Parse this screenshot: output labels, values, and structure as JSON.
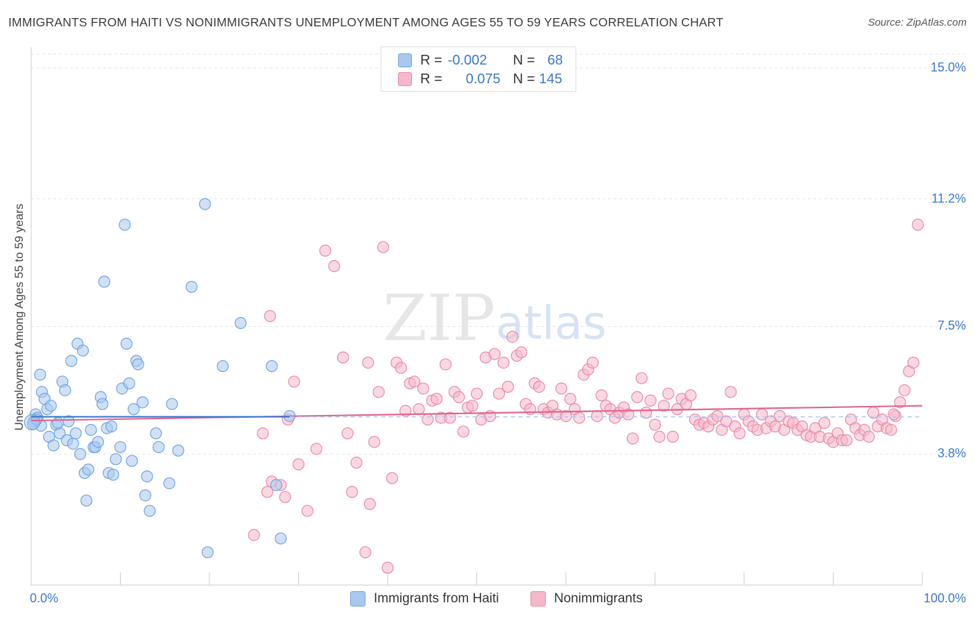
{
  "title": "IMMIGRANTS FROM HAITI VS NONIMMIGRANTS UNEMPLOYMENT AMONG AGES 55 TO 59 YEARS CORRELATION CHART",
  "source": "Source: ZipAtlas.com",
  "watermark": {
    "zip": "ZIP",
    "atlas": "atlas"
  },
  "legend": {
    "rows": [
      {
        "r_label": "R =",
        "r_value": "-0.002",
        "n_label": "N =",
        "n_value": "68",
        "color": "#a9c8ef"
      },
      {
        "r_label": "R =",
        "r_value": "0.075",
        "n_label": "N =",
        "n_value": "145",
        "color": "#f5b8cb"
      }
    ]
  },
  "bottom_legend": [
    {
      "label": "Immigrants from Haiti",
      "color": "#a9c8ef"
    },
    {
      "label": "Nonimmigrants",
      "color": "#f5b8cb"
    }
  ],
  "chart_data": {
    "type": "scatter",
    "title": "IMMIGRANTS FROM HAITI VS NONIMMIGRANTS UNEMPLOYMENT AMONG AGES 55 TO 59 YEARS CORRELATION CHART",
    "xlabel": "",
    "ylabel": "Unemployment Among Ages 55 to 59 years",
    "xlim": [
      0,
      100
    ],
    "ylim": [
      0,
      15.4
    ],
    "x_tick_labels": [
      "0.0%",
      "100.0%"
    ],
    "y_ticks": [
      3.8,
      7.5,
      11.2,
      15.0
    ],
    "y_tick_labels": [
      "3.8%",
      "7.5%",
      "11.2%",
      "15.0%"
    ],
    "grid": true,
    "legend_position": "top-center",
    "series": [
      {
        "name": "Immigrants from Haiti",
        "color": "#6fa3e0",
        "fill": "#a9c8ef",
        "trend": {
          "x": [
            0,
            29
          ],
          "y": [
            4.88,
            4.88
          ]
        },
        "points": [
          [
            0.3,
            4.75
          ],
          [
            0.5,
            4.95
          ],
          [
            0.7,
            4.85
          ],
          [
            1.0,
            6.1
          ],
          [
            1.2,
            5.6
          ],
          [
            1.5,
            5.4
          ],
          [
            1.8,
            5.1
          ],
          [
            2.0,
            4.3
          ],
          [
            2.2,
            5.2
          ],
          [
            2.5,
            4.05
          ],
          [
            2.8,
            4.65
          ],
          [
            3.0,
            4.7
          ],
          [
            3.2,
            4.4
          ],
          [
            3.5,
            5.9
          ],
          [
            3.8,
            5.65
          ],
          [
            4.0,
            4.2
          ],
          [
            4.2,
            4.75
          ],
          [
            4.5,
            6.5
          ],
          [
            4.7,
            4.1
          ],
          [
            5.0,
            4.4
          ],
          [
            5.2,
            7.0
          ],
          [
            5.5,
            3.8
          ],
          [
            5.8,
            6.8
          ],
          [
            6.0,
            3.25
          ],
          [
            6.2,
            2.45
          ],
          [
            6.4,
            3.35
          ],
          [
            6.7,
            4.5
          ],
          [
            7.0,
            4.0
          ],
          [
            7.2,
            4.0
          ],
          [
            7.5,
            4.15
          ],
          [
            7.8,
            5.45
          ],
          [
            8.0,
            5.25
          ],
          [
            8.2,
            8.8
          ],
          [
            8.5,
            4.55
          ],
          [
            8.7,
            3.25
          ],
          [
            9.0,
            4.6
          ],
          [
            9.2,
            3.2
          ],
          [
            9.5,
            3.65
          ],
          [
            10.0,
            4.0
          ],
          [
            10.2,
            5.7
          ],
          [
            10.5,
            10.45
          ],
          [
            10.7,
            7.0
          ],
          [
            11.0,
            5.85
          ],
          [
            11.3,
            3.6
          ],
          [
            11.5,
            5.1
          ],
          [
            11.8,
            6.5
          ],
          [
            12.0,
            6.4
          ],
          [
            12.5,
            5.3
          ],
          [
            12.8,
            2.6
          ],
          [
            13.0,
            3.15
          ],
          [
            13.3,
            2.15
          ],
          [
            14.0,
            4.4
          ],
          [
            14.3,
            4.0
          ],
          [
            15.5,
            2.95
          ],
          [
            15.8,
            5.25
          ],
          [
            16.5,
            3.9
          ],
          [
            18.0,
            8.65
          ],
          [
            19.5,
            11.05
          ],
          [
            19.8,
            0.95
          ],
          [
            21.5,
            6.35
          ],
          [
            23.5,
            7.6
          ],
          [
            27.0,
            6.35
          ],
          [
            27.5,
            2.9
          ],
          [
            28.0,
            1.35
          ],
          [
            29.0,
            4.9
          ],
          [
            0.2,
            4.68
          ],
          [
            1.1,
            4.62
          ],
          [
            0.6,
            4.8
          ]
        ]
      },
      {
        "name": "Nonimmigrants",
        "color": "#e889a8",
        "fill": "#f5b8cb",
        "trend": {
          "x": [
            0,
            100
          ],
          "y": [
            4.77,
            5.2
          ]
        },
        "points": [
          [
            25.0,
            1.45
          ],
          [
            26.0,
            4.4
          ],
          [
            26.5,
            2.7
          ],
          [
            26.8,
            7.8
          ],
          [
            27.0,
            3.0
          ],
          [
            28.0,
            2.9
          ],
          [
            28.5,
            2.55
          ],
          [
            28.8,
            4.8
          ],
          [
            29.5,
            5.9
          ],
          [
            30.0,
            3.5
          ],
          [
            31.0,
            2.15
          ],
          [
            32.0,
            3.95
          ],
          [
            33.0,
            9.7
          ],
          [
            34.0,
            9.25
          ],
          [
            35.0,
            6.6
          ],
          [
            35.5,
            4.4
          ],
          [
            36.0,
            2.7
          ],
          [
            36.5,
            3.55
          ],
          [
            37.5,
            0.95
          ],
          [
            37.8,
            6.45
          ],
          [
            38.0,
            2.35
          ],
          [
            38.5,
            4.15
          ],
          [
            39.0,
            5.6
          ],
          [
            39.5,
            9.8
          ],
          [
            40.0,
            0.5
          ],
          [
            40.5,
            3.1
          ],
          [
            41.0,
            6.45
          ],
          [
            41.5,
            6.3
          ],
          [
            42.0,
            5.05
          ],
          [
            42.5,
            5.85
          ],
          [
            43.0,
            5.9
          ],
          [
            43.5,
            5.1
          ],
          [
            44.0,
            5.7
          ],
          [
            44.5,
            4.8
          ],
          [
            45.0,
            5.35
          ],
          [
            45.5,
            5.4
          ],
          [
            46.0,
            4.85
          ],
          [
            46.5,
            6.4
          ],
          [
            47.0,
            4.85
          ],
          [
            47.5,
            5.6
          ],
          [
            48.0,
            5.45
          ],
          [
            48.5,
            4.45
          ],
          [
            49.0,
            5.15
          ],
          [
            49.5,
            5.2
          ],
          [
            50.0,
            5.55
          ],
          [
            50.5,
            4.8
          ],
          [
            51.0,
            6.6
          ],
          [
            51.5,
            4.9
          ],
          [
            52.0,
            6.7
          ],
          [
            52.5,
            5.55
          ],
          [
            53.0,
            6.45
          ],
          [
            53.5,
            5.75
          ],
          [
            54.0,
            7.2
          ],
          [
            54.5,
            6.65
          ],
          [
            55.0,
            6.75
          ],
          [
            55.5,
            5.25
          ],
          [
            56.0,
            5.1
          ],
          [
            56.5,
            5.85
          ],
          [
            57.0,
            5.75
          ],
          [
            57.5,
            5.1
          ],
          [
            58.0,
            5.0
          ],
          [
            58.5,
            5.2
          ],
          [
            59.0,
            4.95
          ],
          [
            59.5,
            5.7
          ],
          [
            60.0,
            4.9
          ],
          [
            60.5,
            5.4
          ],
          [
            61.0,
            5.1
          ],
          [
            61.5,
            4.85
          ],
          [
            62.0,
            6.1
          ],
          [
            62.5,
            6.25
          ],
          [
            63.0,
            6.45
          ],
          [
            63.5,
            4.9
          ],
          [
            64.0,
            5.5
          ],
          [
            64.5,
            5.2
          ],
          [
            65.0,
            5.1
          ],
          [
            65.5,
            4.85
          ],
          [
            66.0,
            5.0
          ],
          [
            66.5,
            5.15
          ],
          [
            67.0,
            4.95
          ],
          [
            67.5,
            4.25
          ],
          [
            68.0,
            5.45
          ],
          [
            68.5,
            6.0
          ],
          [
            69.0,
            5.0
          ],
          [
            69.5,
            5.35
          ],
          [
            70.0,
            4.65
          ],
          [
            70.5,
            4.3
          ],
          [
            71.0,
            5.2
          ],
          [
            71.5,
            5.55
          ],
          [
            72.0,
            4.3
          ],
          [
            72.5,
            5.1
          ],
          [
            73.0,
            5.4
          ],
          [
            73.5,
            5.25
          ],
          [
            74.0,
            5.5
          ],
          [
            74.5,
            4.8
          ],
          [
            75.0,
            4.65
          ],
          [
            75.5,
            4.7
          ],
          [
            76.0,
            4.6
          ],
          [
            76.5,
            4.8
          ],
          [
            77.0,
            4.9
          ],
          [
            77.5,
            4.5
          ],
          [
            78.0,
            4.75
          ],
          [
            78.5,
            5.6
          ],
          [
            79.0,
            4.6
          ],
          [
            79.5,
            4.4
          ],
          [
            80.0,
            4.95
          ],
          [
            80.5,
            4.75
          ],
          [
            81.0,
            4.6
          ],
          [
            81.5,
            4.5
          ],
          [
            82.0,
            4.95
          ],
          [
            82.5,
            4.55
          ],
          [
            83.0,
            4.75
          ],
          [
            83.5,
            4.6
          ],
          [
            84.0,
            4.9
          ],
          [
            84.5,
            4.5
          ],
          [
            85.0,
            4.75
          ],
          [
            85.5,
            4.7
          ],
          [
            86.0,
            4.5
          ],
          [
            86.5,
            4.6
          ],
          [
            87.0,
            4.35
          ],
          [
            87.5,
            4.3
          ],
          [
            88.0,
            4.55
          ],
          [
            88.5,
            4.3
          ],
          [
            89.0,
            4.7
          ],
          [
            89.5,
            4.25
          ],
          [
            90.0,
            4.15
          ],
          [
            90.5,
            4.4
          ],
          [
            91.0,
            4.2
          ],
          [
            91.5,
            4.2
          ],
          [
            92.0,
            4.8
          ],
          [
            92.5,
            4.55
          ],
          [
            93.0,
            4.35
          ],
          [
            93.5,
            4.5
          ],
          [
            94.0,
            4.3
          ],
          [
            94.5,
            5.0
          ],
          [
            95.0,
            4.6
          ],
          [
            95.5,
            4.8
          ],
          [
            96.0,
            4.55
          ],
          [
            96.5,
            4.5
          ],
          [
            97.0,
            4.9
          ],
          [
            97.5,
            5.3
          ],
          [
            98.0,
            5.65
          ],
          [
            98.5,
            6.2
          ],
          [
            99.0,
            6.45
          ],
          [
            99.5,
            10.45
          ],
          [
            96.8,
            4.95
          ]
        ]
      }
    ]
  }
}
